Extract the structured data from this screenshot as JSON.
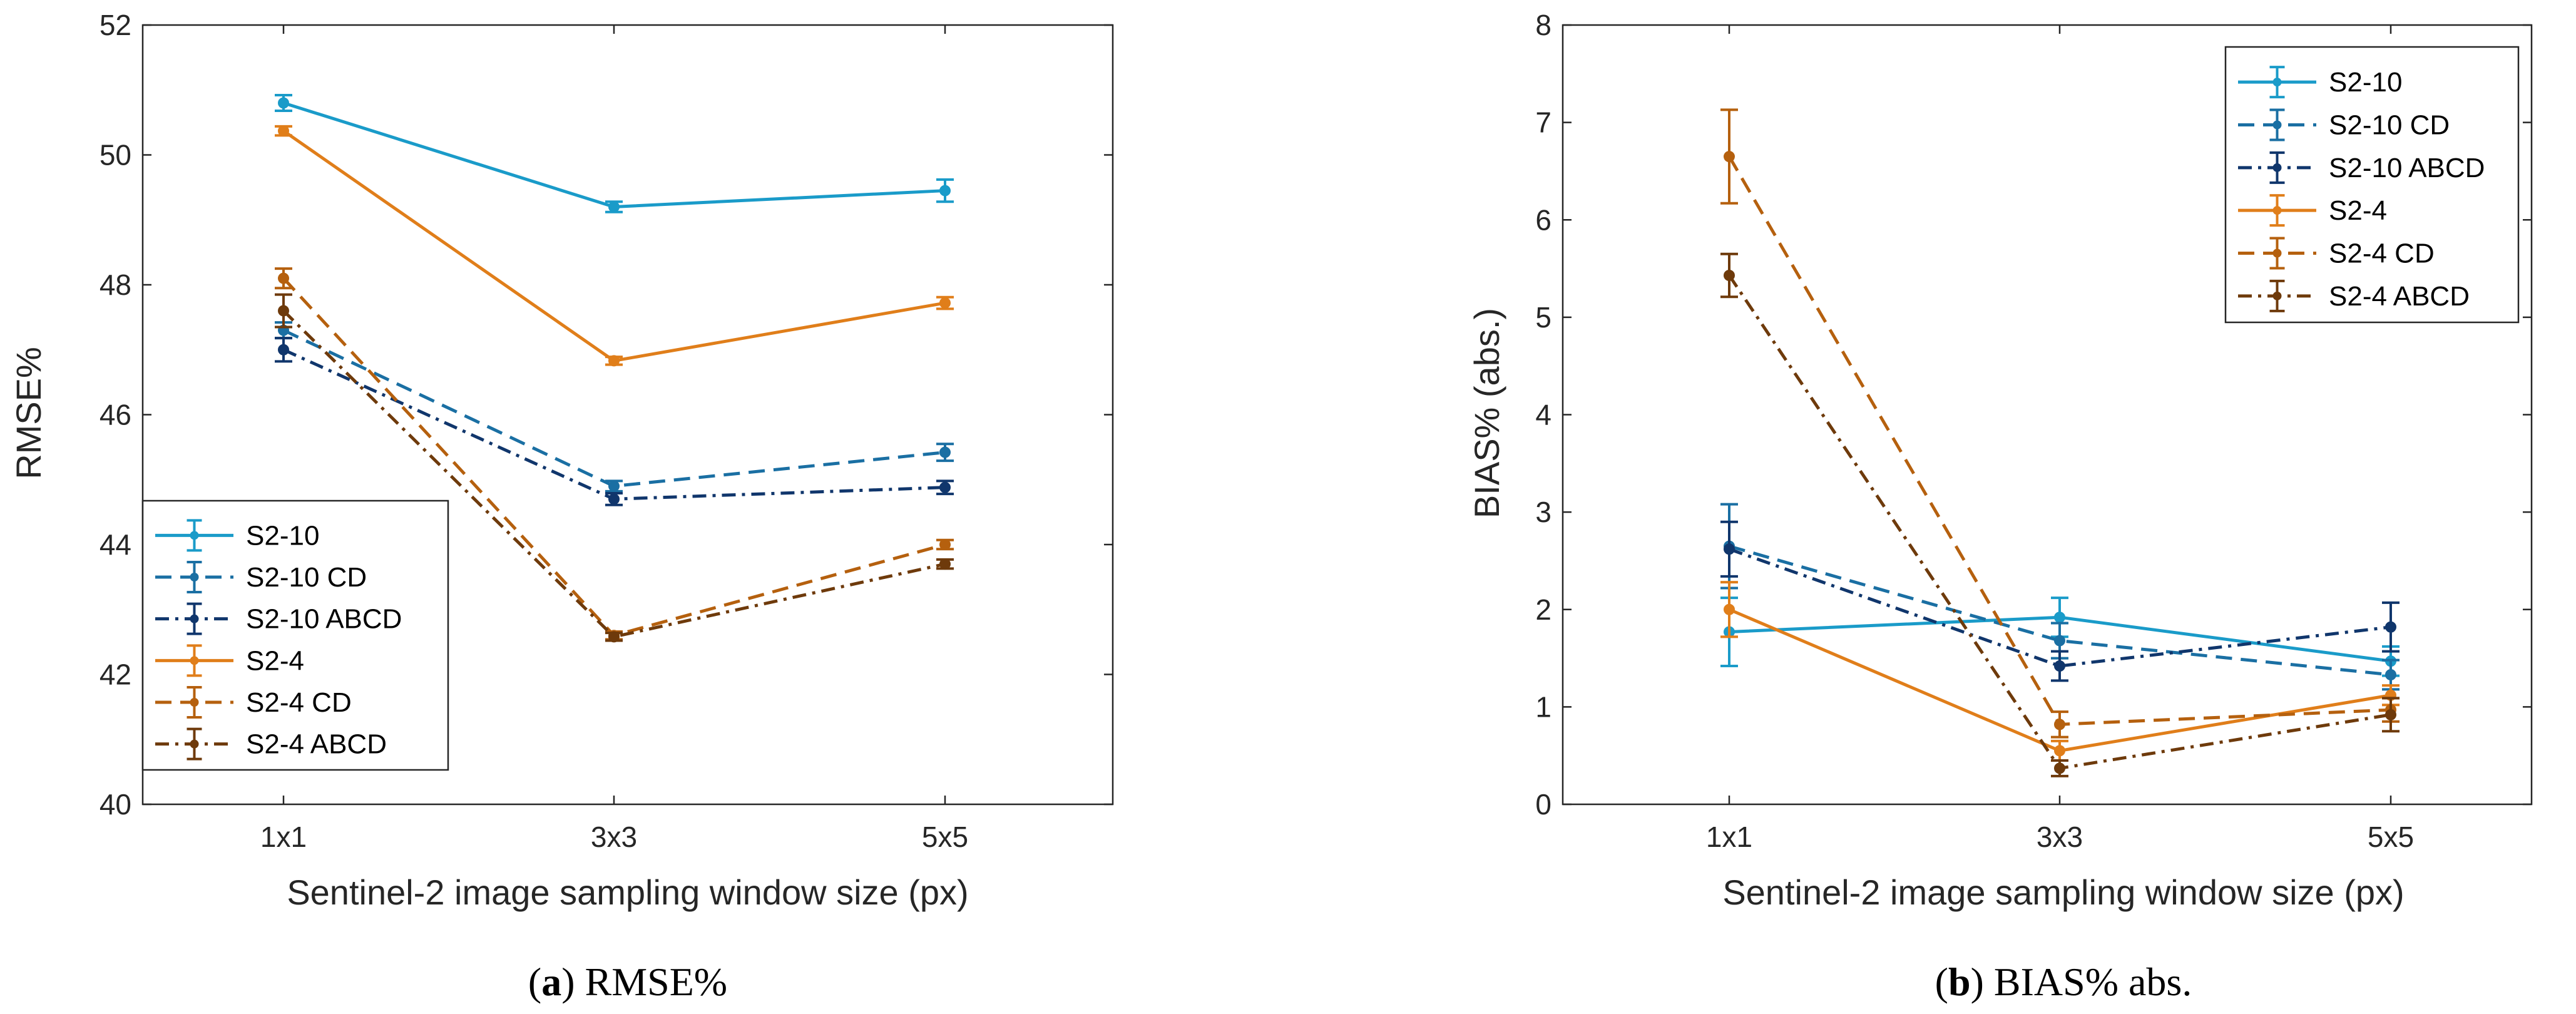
{
  "chart_data": [
    {
      "type": "line",
      "panel": "a",
      "caption_letter": "a",
      "caption_text": "RMSE%",
      "xlabel": "Sentinel-2 image sampling window size (px)",
      "ylabel": "RMSE%",
      "categories": [
        "1x1",
        "3x3",
        "5x5"
      ],
      "ylim": [
        40,
        52
      ],
      "yticks": [
        40,
        42,
        44,
        46,
        48,
        50,
        52
      ],
      "legend_position": "bottom-left",
      "series": [
        {
          "name": "S2-10",
          "color": "#1a9bc9",
          "style": "solid",
          "values": [
            50.8,
            49.2,
            49.45
          ],
          "errors": [
            0.12,
            0.08,
            0.17
          ]
        },
        {
          "name": "S2-10 CD",
          "color": "#1a6fa3",
          "style": "dashed",
          "values": [
            47.3,
            44.9,
            45.42
          ],
          "errors": [
            0.12,
            0.08,
            0.13
          ]
        },
        {
          "name": "S2-10 ABCD",
          "color": "#10366c",
          "style": "dashdot",
          "values": [
            47.0,
            44.7,
            44.88
          ],
          "errors": [
            0.18,
            0.09,
            0.1
          ]
        },
        {
          "name": "S2-4",
          "color": "#e07e1a",
          "style": "solid",
          "values": [
            50.37,
            46.83,
            47.72
          ],
          "errors": [
            0.07,
            0.06,
            0.09
          ]
        },
        {
          "name": "S2-4 CD",
          "color": "#b5600e",
          "style": "dashed",
          "values": [
            48.1,
            42.6,
            44.0
          ],
          "errors": [
            0.15,
            0.06,
            0.07
          ]
        },
        {
          "name": "S2-4 ABCD",
          "color": "#6e3a0b",
          "style": "dashdot",
          "values": [
            47.6,
            42.58,
            43.7
          ],
          "errors": [
            0.25,
            0.06,
            0.07
          ]
        }
      ]
    },
    {
      "type": "line",
      "panel": "b",
      "caption_letter": "b",
      "caption_text": "BIAS% abs.",
      "xlabel": "Sentinel-2 image sampling window size (px)",
      "ylabel": "BIAS% (abs.)",
      "categories": [
        "1x1",
        "3x3",
        "5x5"
      ],
      "ylim": [
        0,
        8
      ],
      "yticks": [
        0,
        1,
        2,
        3,
        4,
        5,
        6,
        7,
        8
      ],
      "legend_position": "top-right",
      "series": [
        {
          "name": "S2-10",
          "color": "#1a9bc9",
          "style": "solid",
          "values": [
            1.77,
            1.92,
            1.47
          ],
          "errors": [
            0.35,
            0.2,
            0.15
          ]
        },
        {
          "name": "S2-10 CD",
          "color": "#1a6fa3",
          "style": "dashed",
          "values": [
            2.65,
            1.68,
            1.33
          ],
          "errors": [
            0.43,
            0.18,
            0.15
          ]
        },
        {
          "name": "S2-10 ABCD",
          "color": "#10366c",
          "style": "dashdot",
          "values": [
            2.62,
            1.42,
            1.82
          ],
          "errors": [
            0.28,
            0.15,
            0.25
          ]
        },
        {
          "name": "S2-4",
          "color": "#e07e1a",
          "style": "solid",
          "values": [
            2.0,
            0.55,
            1.12
          ],
          "errors": [
            0.28,
            0.1,
            0.1
          ]
        },
        {
          "name": "S2-4 CD",
          "color": "#b5600e",
          "style": "dashed",
          "values": [
            6.65,
            0.82,
            0.97
          ],
          "errors": [
            0.48,
            0.13,
            0.12
          ]
        },
        {
          "name": "S2-4 ABCD",
          "color": "#6e3a0b",
          "style": "dashdot",
          "values": [
            5.43,
            0.37,
            0.92
          ],
          "errors": [
            0.22,
            0.08,
            0.17
          ]
        }
      ]
    }
  ]
}
